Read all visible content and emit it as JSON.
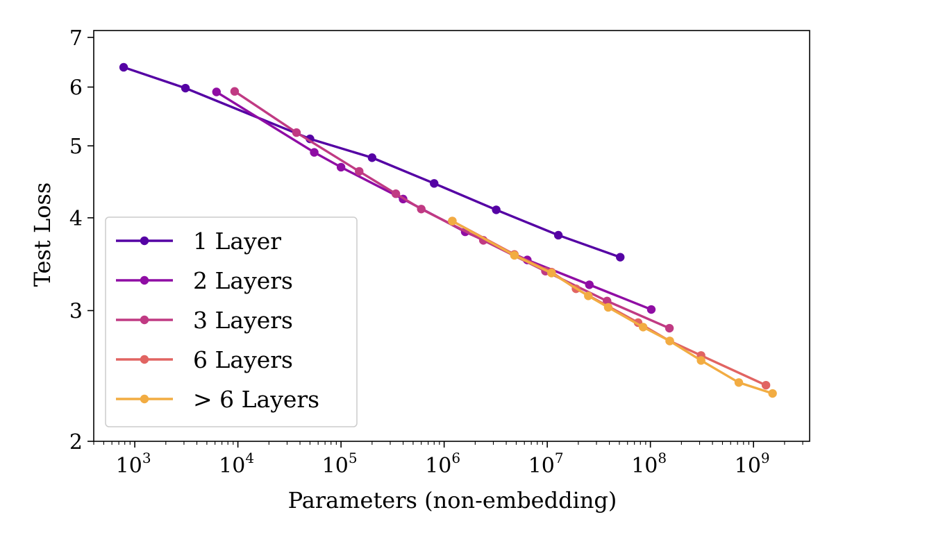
{
  "chart_data": {
    "type": "line",
    "title": "",
    "xlabel": "Parameters (non-embedding)",
    "ylabel": "Test Loss",
    "xscale": "log",
    "yscale": "log",
    "xlim": [
      400,
      3500000000
    ],
    "ylim": [
      2,
      7.15
    ],
    "x_ticks": [
      {
        "value": 1000,
        "base": "10",
        "exp": "3"
      },
      {
        "value": 10000,
        "base": "10",
        "exp": "4"
      },
      {
        "value": 100000,
        "base": "10",
        "exp": "5"
      },
      {
        "value": 1000000,
        "base": "10",
        "exp": "6"
      },
      {
        "value": 10000000,
        "base": "10",
        "exp": "7"
      },
      {
        "value": 100000000,
        "base": "10",
        "exp": "8"
      },
      {
        "value": 1000000000,
        "base": "10",
        "exp": "9"
      }
    ],
    "y_ticks": [
      {
        "value": 2,
        "label": "2"
      },
      {
        "value": 3,
        "label": "3"
      },
      {
        "value": 4,
        "label": "4"
      },
      {
        "value": 5,
        "label": "5"
      },
      {
        "value": 6,
        "label": "6"
      },
      {
        "value": 7,
        "label": "7"
      }
    ],
    "legend_position": "lower-left",
    "series": [
      {
        "name": "1 Layer",
        "color": "#5502a4",
        "x": [
          780,
          3100,
          50000,
          200000,
          800000,
          3200000,
          12800000,
          51000000
        ],
        "y": [
          6.38,
          5.98,
          5.11,
          4.82,
          4.45,
          4.1,
          3.79,
          3.54
        ]
      },
      {
        "name": "2 Layers",
        "color": "#8f0da4",
        "x": [
          6200,
          55000,
          100000,
          400000,
          1600000,
          6400000,
          25600000,
          102000000
        ],
        "y": [
          5.91,
          4.9,
          4.68,
          4.24,
          3.83,
          3.51,
          3.25,
          3.01
        ]
      },
      {
        "name": "3 Layers",
        "color": "#c03a83",
        "x": [
          9300,
          37000,
          150000,
          340000,
          600000,
          2400000,
          9600000,
          38000000,
          153000000
        ],
        "y": [
          5.92,
          5.21,
          4.62,
          4.31,
          4.11,
          3.73,
          3.39,
          3.09,
          2.84
        ]
      },
      {
        "name": "6 Layers",
        "color": "#e16462",
        "x": [
          1200000,
          4800000,
          11000000,
          19000000,
          76000000,
          154000000,
          310000000,
          1320000000
        ],
        "y": [
          3.96,
          3.57,
          3.38,
          3.21,
          2.89,
          2.73,
          2.61,
          2.38
        ]
      },
      {
        "name": "> 6 Layers",
        "color": "#f2ac42",
        "x": [
          1200000,
          4800000,
          11000000,
          25000000,
          39000000,
          85000000,
          154000000,
          310000000,
          720000000,
          1530000000
        ],
        "y": [
          3.96,
          3.56,
          3.37,
          3.14,
          3.03,
          2.85,
          2.73,
          2.57,
          2.4,
          2.32
        ]
      }
    ]
  }
}
